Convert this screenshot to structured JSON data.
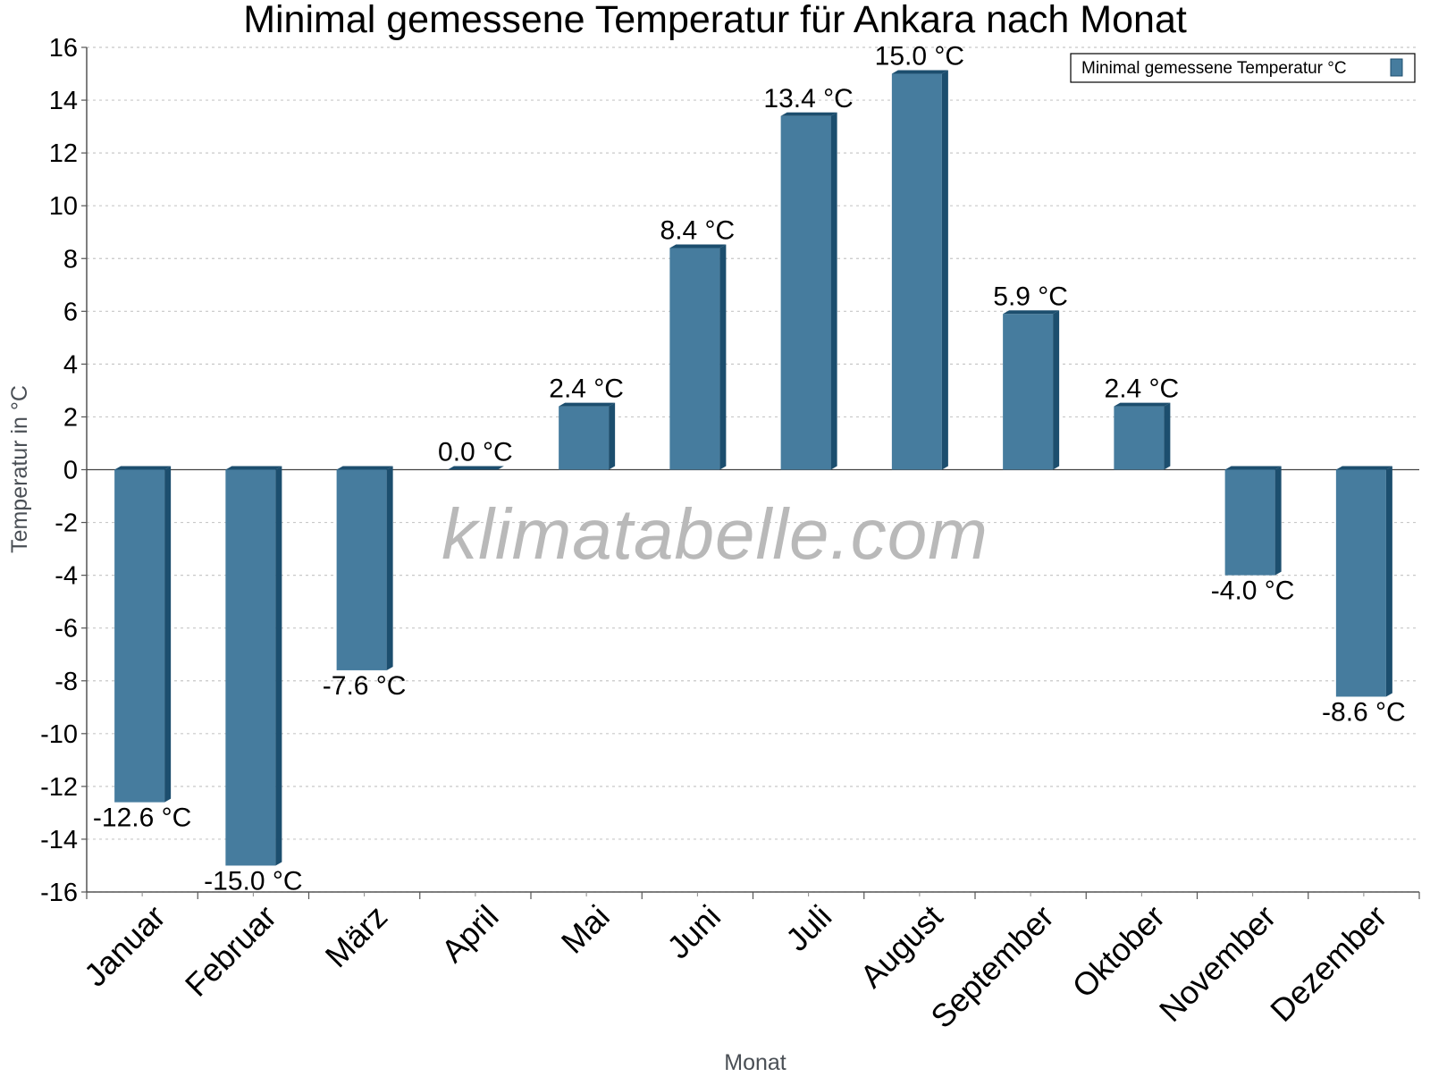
{
  "chart_data": {
    "type": "bar",
    "title": "Minimal gemessene Temperatur für Ankara nach Monat",
    "xlabel": "Monat",
    "ylabel": "Temperatur in °C",
    "categories": [
      "Januar",
      "Februar",
      "März",
      "April",
      "Mai",
      "Juni",
      "Juli",
      "August",
      "September",
      "Oktober",
      "November",
      "Dezember"
    ],
    "series": [
      {
        "name": "Minimal gemessene Temperatur °C",
        "values": [
          -12.6,
          -15.0,
          -7.6,
          0.0,
          2.4,
          8.4,
          13.4,
          15.0,
          5.9,
          2.4,
          -4.0,
          -8.6
        ],
        "labels": [
          "-12.6 °C",
          "-15.0 °C",
          "-7.6 °C",
          "0.0 °C",
          "2.4 °C",
          "8.4 °C",
          "13.4 °C",
          "15.0 °C",
          "5.9 °C",
          "2.4 °C",
          "-4.0 °C",
          "-8.6 °C"
        ]
      }
    ],
    "ylim": [
      -16,
      16
    ],
    "yticks": [
      16,
      14,
      12,
      10,
      8,
      6,
      4,
      2,
      0,
      -2,
      -4,
      -6,
      -8,
      -10,
      -12,
      -14,
      -16
    ],
    "grid": true,
    "legend_position": "top-right",
    "colors": {
      "bar_front": "#467c9e",
      "bar_side": "#1c4e6e",
      "grid": "#c8c8c8"
    }
  },
  "watermark": "klimatabelle.com"
}
